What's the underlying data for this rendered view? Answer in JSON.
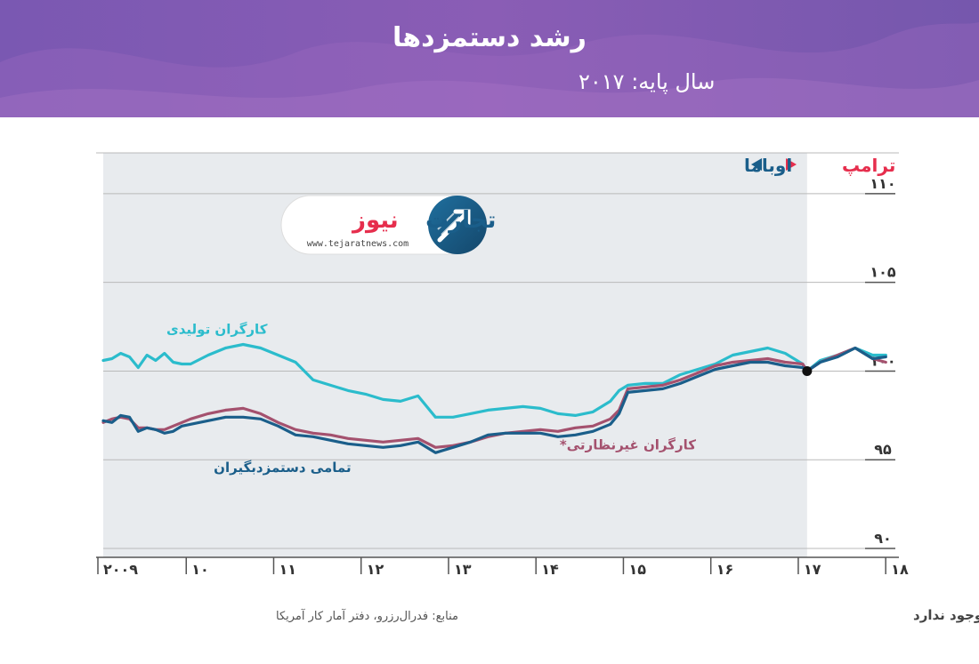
{
  "header": {
    "title": "رشد دستمزدها",
    "subtitle": "سال پایه: ۲۰۱۷"
  },
  "colors": {
    "header_bg": "#7d5bb3",
    "shade": "#e8ebee",
    "all_workers": "#1a5e8a",
    "non_supervisory": "#a4516e",
    "manufacturing": "#2bbccc",
    "trump": "#e62e4d",
    "obama": "#1a5e8a",
    "grid": "#b9b9b9"
  },
  "presidents": {
    "trump_label": "ترامپ",
    "obama_label": "اوباما"
  },
  "logo": {
    "brand_part1": "تجارت",
    "brand_part2": "نیوز",
    "url": "www.tejaratnews.com"
  },
  "chart_data": {
    "type": "line",
    "x_ticks": [
      {
        "label": "۲۰۰۹",
        "value": 2009
      },
      {
        "label": "۱۰",
        "value": 2010
      },
      {
        "label": "۱۱",
        "value": 2011
      },
      {
        "label": "۱۲",
        "value": 2012
      },
      {
        "label": "۱۳",
        "value": 2013
      },
      {
        "label": "۱۴",
        "value": 2014
      },
      {
        "label": "۱۵",
        "value": 2015
      },
      {
        "label": "۱۶",
        "value": 2016
      },
      {
        "label": "۱۷",
        "value": 2017
      },
      {
        "label": "۱۸",
        "value": 2018
      }
    ],
    "y_ticks": [
      {
        "label": "۹۰",
        "value": 90
      },
      {
        "label": "۹۵",
        "value": 95
      },
      {
        "label": "۱۰۰",
        "value": 100
      },
      {
        "label": "۱۰۵",
        "value": 105
      },
      {
        "label": "۱۱۰",
        "value": 110
      }
    ],
    "xlim": [
      2009.0,
      2018.1
    ],
    "ylim": [
      89.5,
      112.3
    ],
    "shaded_range": [
      2009.0,
      2017.05
    ],
    "base_point": {
      "x": 2017.05,
      "y": 100
    },
    "series": [
      {
        "key": "manufacturing",
        "name": "کارگران تولیدی",
        "x": [
          2009.0,
          2009.1,
          2009.2,
          2009.3,
          2009.4,
          2009.5,
          2009.6,
          2009.7,
          2009.8,
          2009.9,
          2010.0,
          2010.2,
          2010.4,
          2010.6,
          2010.8,
          2011.0,
          2011.2,
          2011.4,
          2011.6,
          2011.8,
          2012.0,
          2012.2,
          2012.4,
          2012.6,
          2012.8,
          2013.0,
          2013.2,
          2013.4,
          2013.6,
          2013.8,
          2014.0,
          2014.2,
          2014.4,
          2014.6,
          2014.8,
          2014.9,
          2015.0,
          2015.2,
          2015.4,
          2015.6,
          2015.8,
          2016.0,
          2016.2,
          2016.4,
          2016.6,
          2016.8,
          2017.0,
          2017.05,
          2017.2,
          2017.4,
          2017.6,
          2017.8,
          2017.95
        ],
        "values": [
          100.6,
          100.7,
          101.0,
          100.8,
          100.2,
          100.9,
          100.6,
          101.0,
          100.5,
          100.4,
          100.4,
          100.9,
          101.3,
          101.5,
          101.3,
          100.9,
          100.5,
          99.5,
          99.2,
          98.9,
          98.7,
          98.4,
          98.3,
          98.6,
          97.4,
          97.4,
          97.6,
          97.8,
          97.9,
          98.0,
          97.9,
          97.6,
          97.5,
          97.7,
          98.3,
          98.9,
          99.2,
          99.3,
          99.3,
          99.8,
          100.1,
          100.4,
          100.9,
          101.1,
          101.3,
          101.0,
          100.4,
          100.0,
          100.6,
          100.9,
          101.3,
          100.9,
          100.9
        ]
      },
      {
        "key": "non_supervisory",
        "name": "کارگران غیرنظارتی*",
        "x": [
          2009.0,
          2009.1,
          2009.2,
          2009.3,
          2009.4,
          2009.5,
          2009.6,
          2009.7,
          2009.8,
          2009.9,
          2010.0,
          2010.2,
          2010.4,
          2010.6,
          2010.8,
          2011.0,
          2011.2,
          2011.4,
          2011.6,
          2011.8,
          2012.0,
          2012.2,
          2012.4,
          2012.6,
          2012.8,
          2013.0,
          2013.2,
          2013.4,
          2013.6,
          2013.8,
          2014.0,
          2014.2,
          2014.4,
          2014.6,
          2014.8,
          2014.9,
          2015.0,
          2015.2,
          2015.4,
          2015.6,
          2015.8,
          2016.0,
          2016.2,
          2016.4,
          2016.6,
          2016.8,
          2017.0,
          2017.05,
          2017.2,
          2017.4,
          2017.6,
          2017.8,
          2017.95
        ],
        "values": [
          97.1,
          97.3,
          97.4,
          97.3,
          96.8,
          96.8,
          96.7,
          96.7,
          96.9,
          97.1,
          97.3,
          97.6,
          97.8,
          97.9,
          97.6,
          97.1,
          96.7,
          96.5,
          96.4,
          96.2,
          96.1,
          96.0,
          96.1,
          96.2,
          95.7,
          95.8,
          96.0,
          96.3,
          96.5,
          96.6,
          96.7,
          96.6,
          96.8,
          96.9,
          97.3,
          97.8,
          99.0,
          99.1,
          99.2,
          99.5,
          99.9,
          100.3,
          100.5,
          100.6,
          100.7,
          100.5,
          100.4,
          100.0,
          100.5,
          100.9,
          101.3,
          100.7,
          100.5
        ]
      },
      {
        "key": "all_workers",
        "name": "تمامی دستمزدبگیران",
        "x": [
          2009.0,
          2009.1,
          2009.2,
          2009.3,
          2009.4,
          2009.5,
          2009.6,
          2009.7,
          2009.8,
          2009.9,
          2010.0,
          2010.2,
          2010.4,
          2010.6,
          2010.8,
          2011.0,
          2011.2,
          2011.4,
          2011.6,
          2011.8,
          2012.0,
          2012.2,
          2012.4,
          2012.6,
          2012.8,
          2013.0,
          2013.2,
          2013.4,
          2013.6,
          2013.8,
          2014.0,
          2014.2,
          2014.4,
          2014.6,
          2014.8,
          2014.9,
          2015.0,
          2015.2,
          2015.4,
          2015.6,
          2015.8,
          2016.0,
          2016.2,
          2016.4,
          2016.6,
          2016.8,
          2017.0,
          2017.05,
          2017.2,
          2017.4,
          2017.6,
          2017.8,
          2017.95
        ],
        "values": [
          97.2,
          97.1,
          97.5,
          97.4,
          96.6,
          96.8,
          96.7,
          96.5,
          96.6,
          96.9,
          97.0,
          97.2,
          97.4,
          97.4,
          97.3,
          96.9,
          96.4,
          96.3,
          96.1,
          95.9,
          95.8,
          95.7,
          95.8,
          96.0,
          95.4,
          95.7,
          96.0,
          96.4,
          96.5,
          96.5,
          96.5,
          96.3,
          96.4,
          96.6,
          97.0,
          97.6,
          98.8,
          98.9,
          99.0,
          99.3,
          99.7,
          100.1,
          100.3,
          100.5,
          100.5,
          100.3,
          100.2,
          100.0,
          100.5,
          100.8,
          101.3,
          100.7,
          100.8
        ]
      }
    ],
    "labels": [
      {
        "series": "manufacturing",
        "x": 2010.3,
        "y": 102.1
      },
      {
        "series": "non_supervisory",
        "x": 2015.0,
        "y": 95.6
      },
      {
        "series": "all_workers",
        "x": 2011.05,
        "y": 94.3
      }
    ]
  },
  "footer": {
    "sources": "منابع: فدرال‌رزرو، دفتر آمار کار آمریکا",
    "note": "*کارگرانی که نظارتی بر کار آنها وجود ندارد"
  }
}
